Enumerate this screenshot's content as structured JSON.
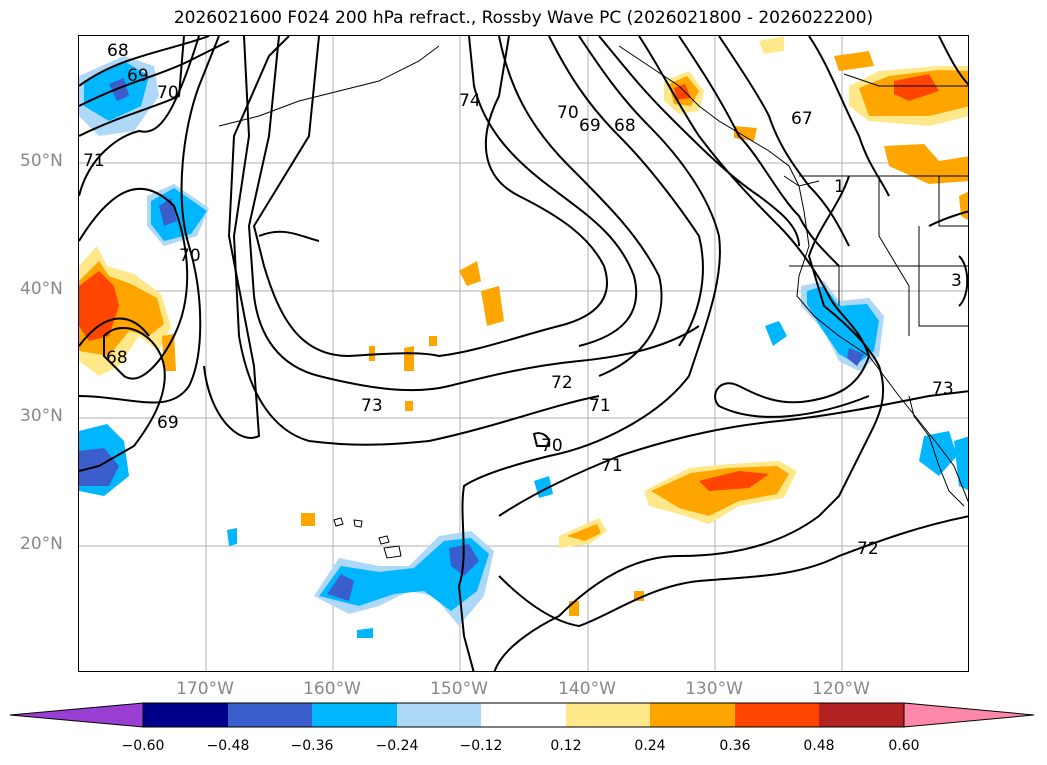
{
  "title": "2026021600 F024 200 hPa refract., Rossby Wave PC (2026021800 - 2026022200)",
  "map": {
    "lat_labels": [
      "50°N",
      "40°N",
      "30°N",
      "20°N"
    ],
    "lon_labels": [
      "170°W",
      "160°W",
      "150°W",
      "140°W",
      "130°W",
      "120°W"
    ],
    "contour_labels": [
      "68",
      "69",
      "70",
      "71",
      "74",
      "70",
      "69",
      "68",
      "67",
      "70",
      "68",
      "69",
      "72",
      "73",
      "71",
      "70",
      "71",
      "72",
      "73",
      "3",
      "1"
    ]
  },
  "colorbar": {
    "ticks": [
      "−0.60",
      "−0.48",
      "−0.36",
      "−0.24",
      "−0.12",
      "0.12",
      "0.24",
      "0.36",
      "0.48",
      "0.60"
    ],
    "colors": [
      "#9a3fd4",
      "#00008b",
      "#3a5fcd",
      "#00b7ff",
      "#add8f7",
      "#ffffff",
      "#ffe88a",
      "#ffa500",
      "#ff4500",
      "#b22222",
      "#ff88aa"
    ]
  }
}
